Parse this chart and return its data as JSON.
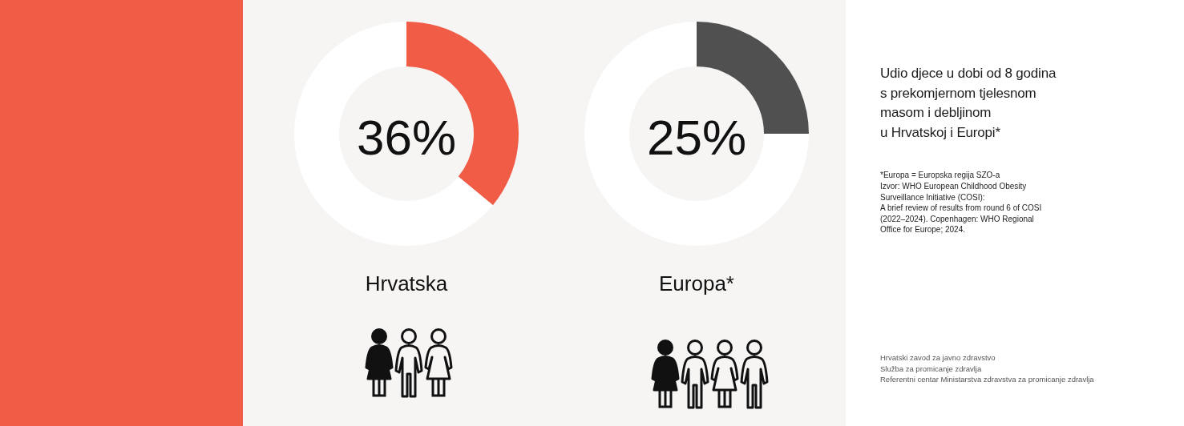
{
  "chart_data": [
    {
      "type": "donut",
      "title": "Hrvatska",
      "categories": [
        null,
        null
      ],
      "values": [
        36,
        64
      ],
      "colors": [
        "#f15c47",
        "#ffffff"
      ],
      "annotations": [
        "36%"
      ]
    },
    {
      "type": "donut",
      "title": "Europa*",
      "categories": [
        null,
        null
      ],
      "values": [
        25,
        75
      ],
      "colors": [
        "#505050",
        "#ffffff"
      ],
      "annotations": [
        "25%"
      ]
    },
    {
      "type": "other",
      "title": "Udio djece u dobi od 8 godina\ns prekomjernom tjelesnom\nmasom i debljinom\nu Hrvatskoj i Europi*",
      "annotations": [
        "*Europa = Europska regija SZO-a",
        "Izvor: WHO European Childhood Obesity\nSurveillance Initiative (COSI):\nA brief review of results from round 6 of COSI\n(2022–2024). Copenhagen: WHO Regional\nOffice for Europe; 2024.",
        "Hrvatski zavod za javno zdravstvo\nSlužba za promicanje zdravlja\nReferentni centar Ministarstva zdravstva za promicanje zdravlja"
      ]
    }
  ]
}
